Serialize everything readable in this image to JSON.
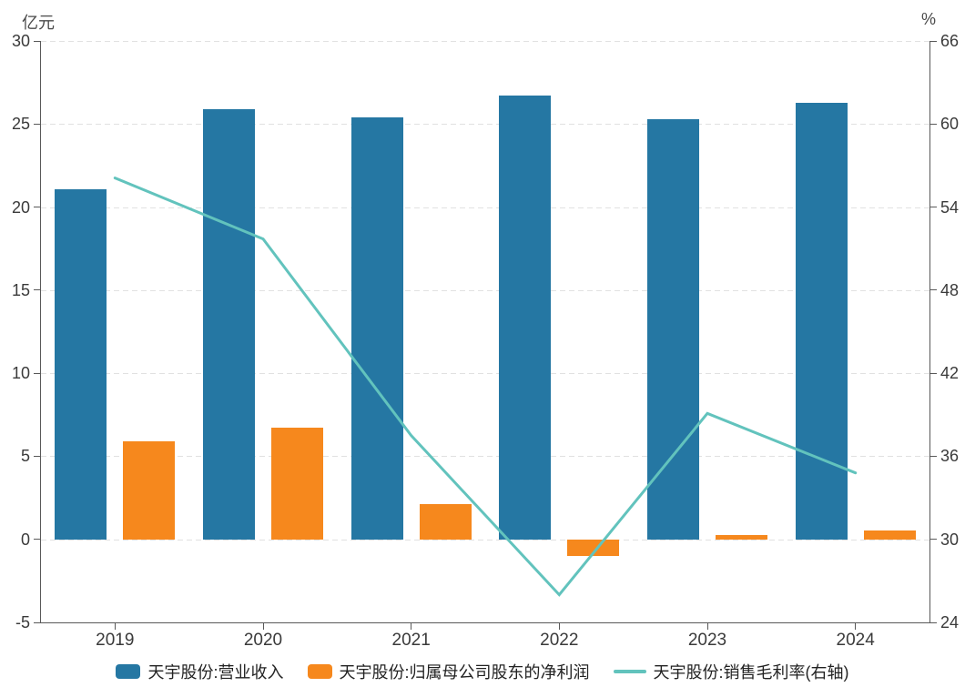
{
  "chart_data": {
    "type": "bar",
    "subtype": "bar-line-combo",
    "categories": [
      "2019",
      "2020",
      "2021",
      "2022",
      "2023",
      "2024"
    ],
    "series": [
      {
        "name": "天宇股份:营业收入",
        "type": "bar",
        "axis": "left",
        "color": "#2577A3",
        "values": [
          21.1,
          25.9,
          25.4,
          26.7,
          25.3,
          26.3
        ]
      },
      {
        "name": "天宇股份:归属母公司股东的净利润",
        "type": "bar",
        "axis": "left",
        "color": "#F6881D",
        "values": [
          5.9,
          6.7,
          2.1,
          -1.0,
          0.25,
          0.55
        ]
      },
      {
        "name": "天宇股份:销售毛利率(右轴)",
        "type": "line",
        "axis": "right",
        "color": "#62C3BD",
        "values": [
          56.1,
          51.7,
          37.5,
          26.0,
          39.1,
          34.8
        ]
      }
    ],
    "left_axis": {
      "unit": "亿元",
      "min": -5,
      "max": 30,
      "ticks": [
        30,
        25,
        20,
        15,
        10,
        5,
        0,
        -5
      ]
    },
    "right_axis": {
      "unit": "%",
      "min": 24,
      "max": 66,
      "ticks": [
        66,
        60,
        54,
        48,
        42,
        36,
        30,
        24
      ]
    },
    "grid": {
      "horizontal": true,
      "style": "dashed"
    },
    "legend_position": "bottom",
    "title": ""
  },
  "colors": {
    "axis": "#595959",
    "gridline": "#E1E1E1",
    "tick_text": "#3A3A3A"
  }
}
